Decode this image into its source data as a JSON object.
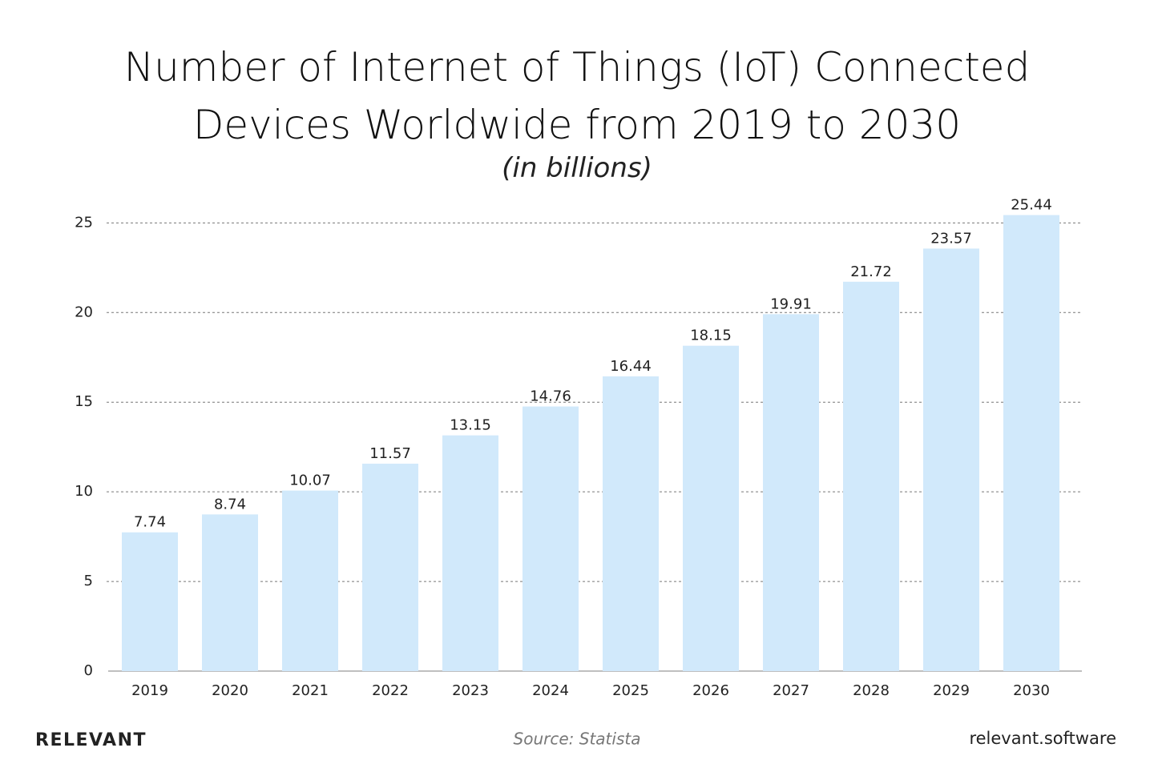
{
  "chart_data": {
    "type": "bar",
    "title": "Number of Internet of Things (IoT) Connected Devices Worldwide from 2019 to 2030",
    "subtitle": "(in billions)",
    "categories": [
      "2019",
      "2020",
      "2021",
      "2022",
      "2023",
      "2024",
      "2025",
      "2026",
      "2027",
      "2028",
      "2029",
      "2030"
    ],
    "values": [
      7.74,
      8.74,
      10.07,
      11.57,
      13.15,
      14.76,
      16.44,
      18.15,
      19.91,
      21.72,
      23.57,
      25.44
    ],
    "color": "#d1e9fb",
    "ylim": [
      0,
      26
    ],
    "yticks": [
      0,
      5,
      10,
      15,
      20,
      25
    ],
    "grid": true,
    "source": "Source: Statista",
    "brand": "RELEVANT",
    "website": "relevant.software"
  }
}
